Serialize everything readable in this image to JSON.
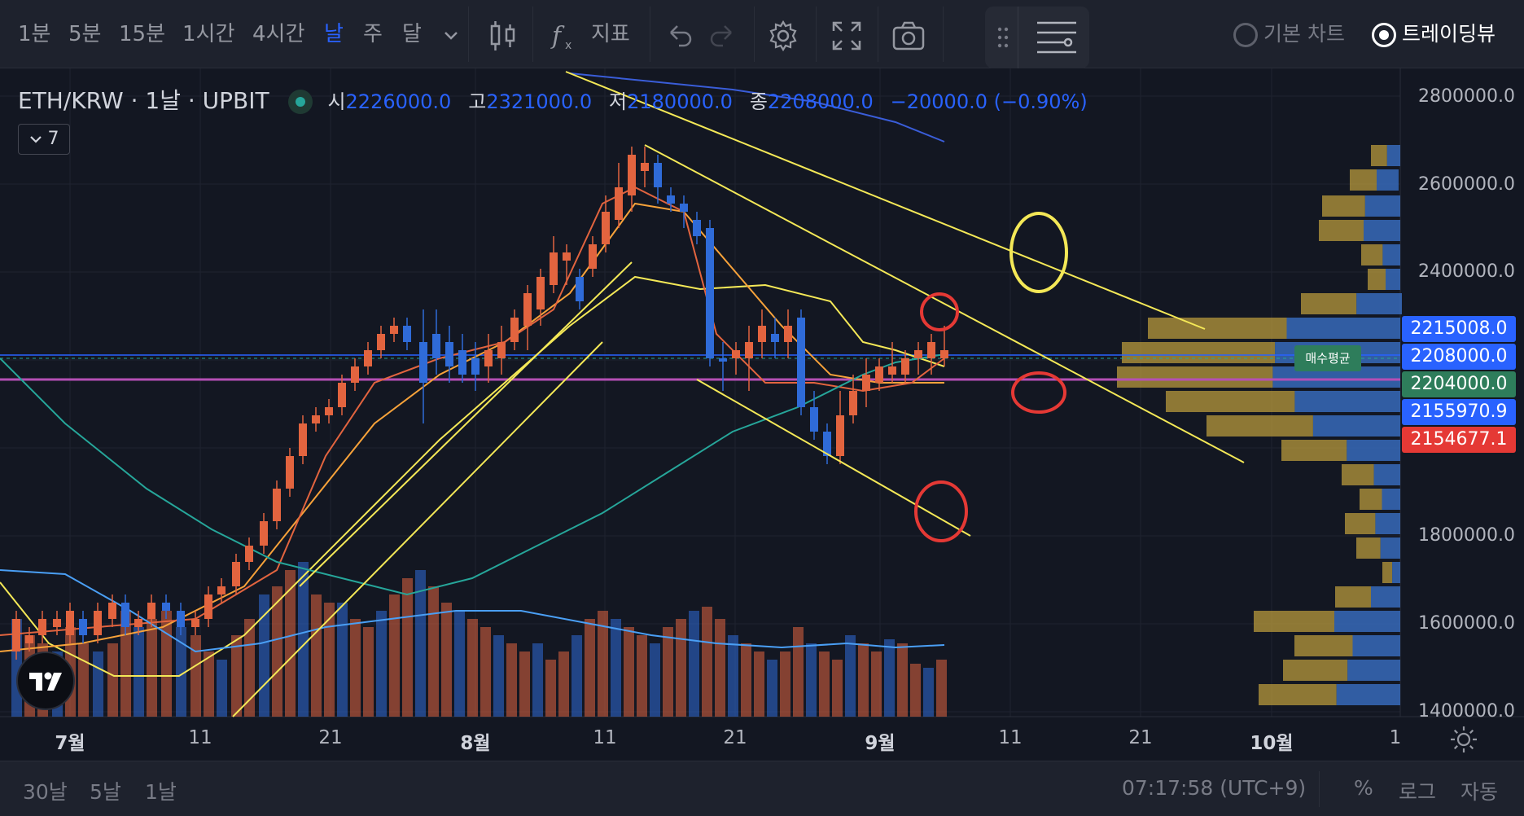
{
  "toolbar": {
    "intervals": [
      "1분",
      "5분",
      "15분",
      "1시간",
      "4시간",
      "날",
      "주",
      "달"
    ],
    "active_interval": "날",
    "indicators_label": "지표",
    "chart_modes": [
      {
        "label": "기본 차트",
        "selected": false
      },
      {
        "label": "트레이딩뷰",
        "selected": true
      }
    ]
  },
  "legend": {
    "symbol": "ETH/KRW",
    "interval": "1날",
    "exchange": "UPBIT",
    "open_key": "시",
    "open": "2226000.0",
    "high_key": "고",
    "high": "2321000.0",
    "low_key": "저",
    "low": "2180000.0",
    "close_key": "종",
    "close": "2208000.0",
    "change": "−20000.0 (−0.90%)",
    "indicator_count": "7"
  },
  "price_axis": {
    "labels": [
      "2800000.0",
      "2600000.0",
      "2400000.0",
      "1800000.0",
      "1600000.0",
      "1400000.0"
    ],
    "tags": [
      {
        "value": "2215008.0",
        "color": "#2962ff"
      },
      {
        "value": "2208000.0",
        "color": "#2962ff"
      },
      {
        "value": "2204000.0",
        "color": "#2e7d5b"
      },
      {
        "value": "2155970.9",
        "color": "#2962ff"
      },
      {
        "value": "2154677.1",
        "color": "#e53935"
      }
    ],
    "avg_label": "매수평균"
  },
  "time_axis": {
    "labels": [
      "7월",
      "11",
      "21",
      "8월",
      "11",
      "21",
      "9월",
      "11",
      "21",
      "10월",
      "1"
    ]
  },
  "bottom": {
    "ranges": [
      "30날",
      "5날",
      "1날"
    ],
    "clock": "07:17:58 (UTC+9)",
    "percent": "%",
    "log": "로그",
    "auto": "자동"
  },
  "colors": {
    "up": "#e2643f",
    "down": "#2f6bd8",
    "bg": "#131722",
    "trend": "#f4e857",
    "marker": "#e53935",
    "avg_line": "#b54fb5"
  }
}
